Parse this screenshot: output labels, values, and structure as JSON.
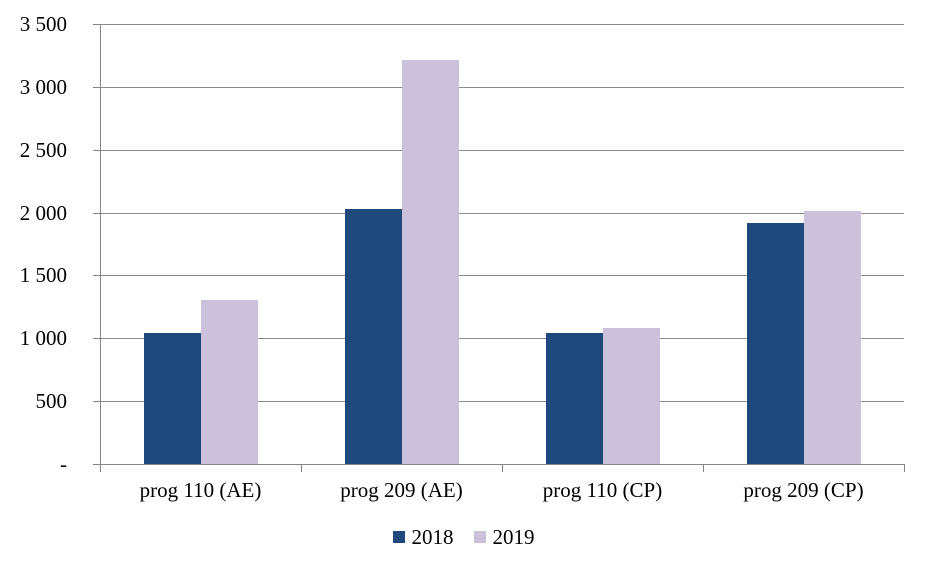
{
  "chart_data": {
    "type": "bar",
    "categories": [
      "prog 110 (AE)",
      "prog 209 (AE)",
      "prog 110 (CP)",
      "prog 209 (CP)"
    ],
    "series": [
      {
        "name": "2018",
        "color": "#1F497D",
        "values": [
          1045,
          2025,
          1040,
          1920
        ]
      },
      {
        "name": "2019",
        "color": "#CCC1DA",
        "values": [
          1305,
          3210,
          1080,
          2015
        ]
      }
    ],
    "ylim": [
      0,
      3500
    ],
    "ytick_interval": 500,
    "ytick_labels_top_to_bottom": [
      "3 500",
      "3 000",
      "2 500",
      "2 000",
      "1 500",
      "1 000",
      "500",
      "-"
    ],
    "grid": true,
    "legend_position": "bottom",
    "axis_color": "#858585",
    "gridline_color": "#8a8a8a",
    "text_color": "#000000"
  }
}
